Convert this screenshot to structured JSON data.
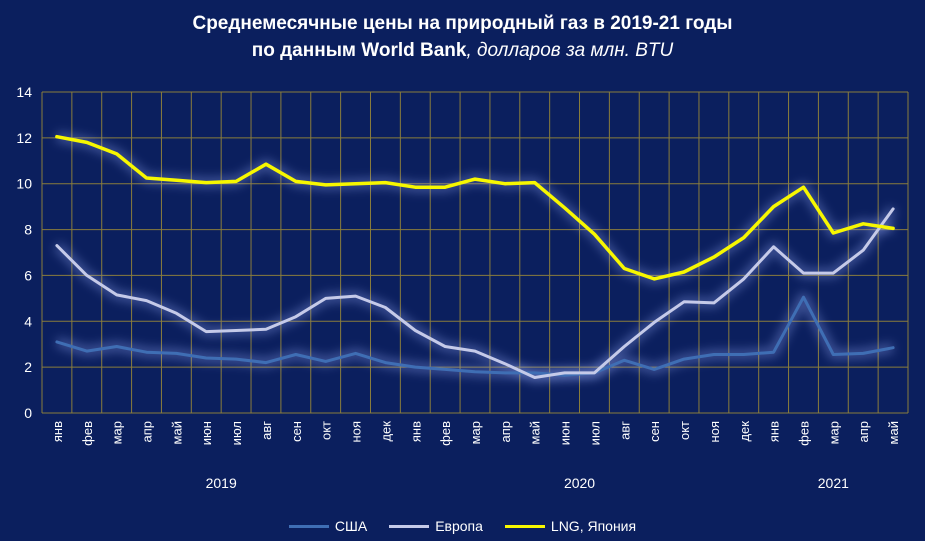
{
  "title": {
    "line1": "Среднемесячные цены на природный газ в 2019-21 годы",
    "line2_bold": "по данным World Bank",
    "line2_unit": ", долларов за млн. BTU"
  },
  "chart_data": {
    "type": "line",
    "title": "Среднемесячные цены на природный газ в 2019-21 годы по данным World Bank, долларов за млн. BTU",
    "categories": [
      "янв",
      "фев",
      "мар",
      "апр",
      "май",
      "июн",
      "июл",
      "авг",
      "сен",
      "окт",
      "ноя",
      "дек",
      "янв",
      "фев",
      "мар",
      "апр",
      "май",
      "июн",
      "июл",
      "авг",
      "сен",
      "окт",
      "ноя",
      "дек",
      "янв",
      "фев",
      "мар",
      "апр",
      "май"
    ],
    "year_groups": [
      {
        "label": "2019",
        "start": 0,
        "end": 11
      },
      {
        "label": "2020",
        "start": 12,
        "end": 23
      },
      {
        "label": "2021",
        "start": 24,
        "end": 28
      }
    ],
    "ylim": [
      0,
      14
    ],
    "yticks": [
      0,
      2,
      4,
      6,
      8,
      10,
      12,
      14
    ],
    "grid": true,
    "legend_position": "bottom",
    "series": [
      {
        "name": "США",
        "color": "#3f6eb4",
        "values": [
          3.1,
          2.7,
          2.9,
          2.65,
          2.6,
          2.4,
          2.35,
          2.2,
          2.55,
          2.25,
          2.6,
          2.2,
          2.0,
          1.9,
          1.8,
          1.75,
          1.75,
          1.65,
          1.75,
          2.3,
          1.9,
          2.35,
          2.55,
          2.55,
          2.65,
          5.05,
          2.55,
          2.6,
          2.85
        ]
      },
      {
        "name": "Европа",
        "color": "#c5cae9",
        "values": [
          7.3,
          6.0,
          5.15,
          4.9,
          4.35,
          3.55,
          3.6,
          3.65,
          4.2,
          5.0,
          5.1,
          4.6,
          3.6,
          2.9,
          2.7,
          2.15,
          1.55,
          1.75,
          1.75,
          2.9,
          3.95,
          4.85,
          4.8,
          5.85,
          7.25,
          6.1,
          6.1,
          7.1,
          8.9
        ]
      },
      {
        "name": "LNG, Япония",
        "color": "#f7f700",
        "values": [
          12.05,
          11.8,
          11.3,
          10.25,
          10.15,
          10.05,
          10.1,
          10.85,
          10.1,
          9.95,
          10.0,
          10.05,
          9.85,
          9.85,
          10.2,
          10.0,
          10.05,
          8.95,
          7.8,
          6.3,
          5.85,
          6.15,
          6.8,
          7.65,
          9.0,
          9.85,
          7.85,
          8.25,
          8.05
        ]
      }
    ]
  }
}
